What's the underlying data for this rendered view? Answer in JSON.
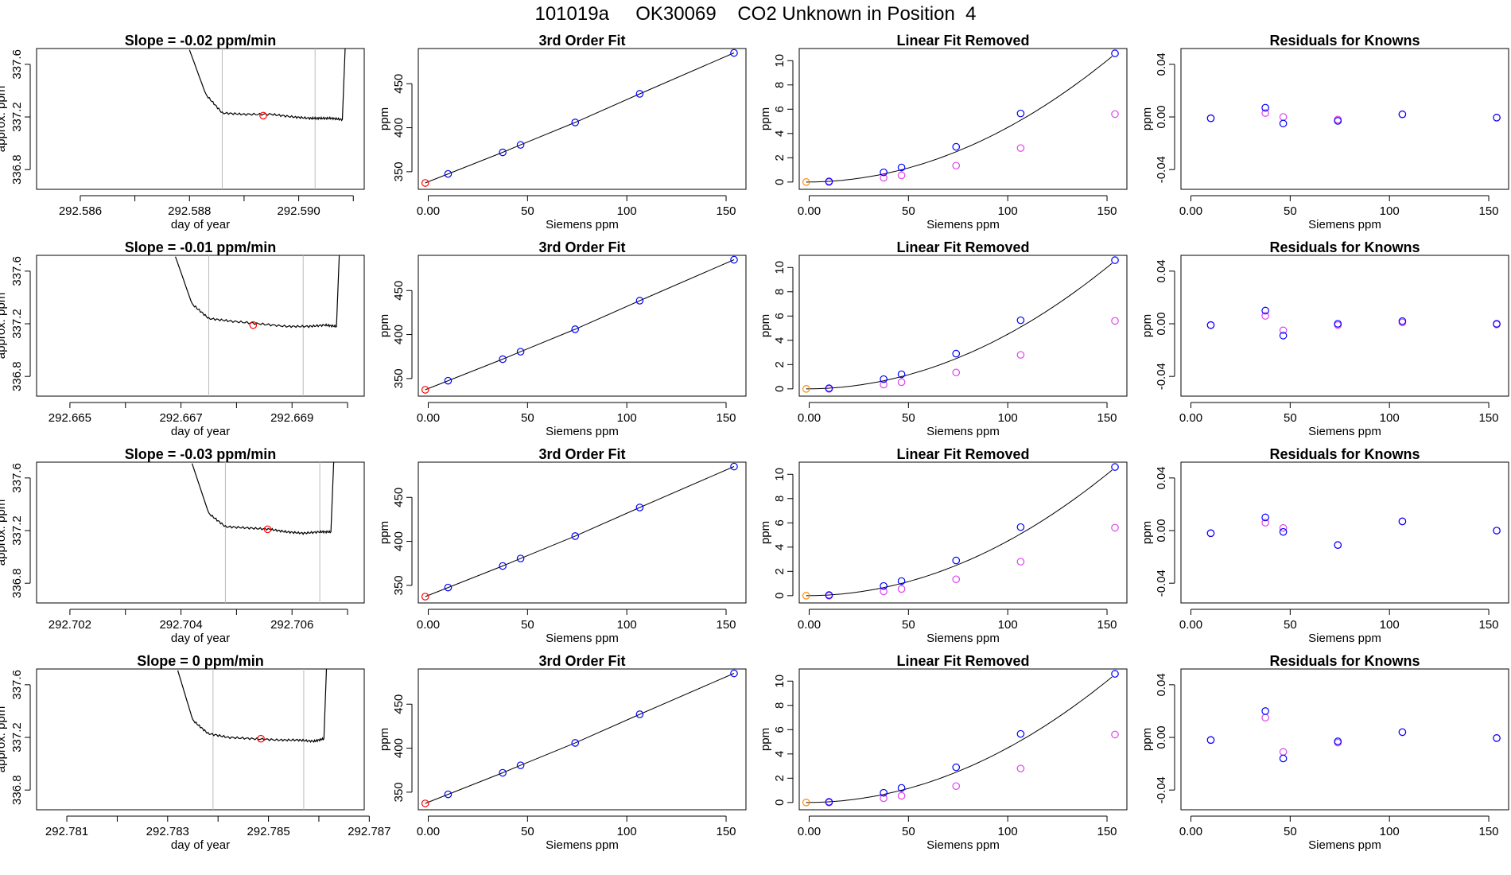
{
  "title": "101019a     OK30069    CO2 Unknown in Position  4",
  "chart_data": [
    {
      "type": "line",
      "panel": "timeseries",
      "row": 0,
      "title": "Slope =  -0.02  ppm/min",
      "xlabel": "day of year",
      "ylabel": "approx. ppm",
      "xlim": [
        292.5852,
        292.5912
      ],
      "ylim": [
        336.65,
        337.72
      ],
      "xticks": [
        292.586,
        292.587,
        292.588,
        292.589,
        292.59,
        292.591
      ],
      "xticklabels": [
        "292.586",
        "",
        "292.588",
        "",
        "292.590",
        ""
      ],
      "yticks": [
        336.8,
        337.2,
        337.6
      ],
      "yticklabels": [
        "336.8",
        "337.2",
        "337.6"
      ],
      "vlines": [
        292.5886,
        292.5903
      ],
      "line": {
        "x": [
          292.588,
          292.5883,
          292.5886,
          292.589,
          292.5895,
          292.5899,
          292.5902,
          292.5904,
          292.5906,
          292.5908,
          292.59085
        ],
        "y": [
          337.71,
          337.37,
          337.23,
          337.22,
          337.22,
          337.2,
          337.19,
          337.19,
          337.19,
          337.18,
          337.72
        ]
      },
      "marker": {
        "x": 292.58935,
        "y": 337.21
      }
    },
    {
      "type": "scatter",
      "panel": "fit",
      "row": 0,
      "title": "3rd Order Fit",
      "xlabel": "Siemens ppm",
      "ylabel": "ppm",
      "xlim": [
        -5,
        160
      ],
      "ylim": [
        330,
        490
      ],
      "xticks": [
        0,
        50,
        100,
        150
      ],
      "yticks": [
        350,
        400,
        450
      ],
      "x": [
        -1.5,
        10,
        37.5,
        46.5,
        74,
        106.5,
        154
      ],
      "y": [
        337.2,
        347.5,
        372,
        380.5,
        406,
        438.5,
        485
      ],
      "point_colors": [
        "#ff0000",
        "#0000ff",
        "#0000ff",
        "#0000ff",
        "#0000ff",
        "#0000ff",
        "#0000ff"
      ]
    },
    {
      "type": "scatter",
      "panel": "linear-removed",
      "row": 0,
      "title": "Linear Fit Removed",
      "xlabel": "Siemens ppm",
      "ylabel": "ppm",
      "xlim": [
        -5,
        160
      ],
      "ylim": [
        -0.6,
        11
      ],
      "xticks": [
        0,
        50,
        100,
        150
      ],
      "yticks": [
        0,
        2,
        4,
        6,
        8,
        10
      ],
      "blue": {
        "x": [
          10,
          37.5,
          46.5,
          74,
          106.5,
          154
        ],
        "y": [
          0.05,
          0.8,
          1.2,
          2.9,
          5.65,
          10.6
        ]
      },
      "magenta": {
        "x": [
          10,
          37.5,
          46.5,
          74,
          106.5,
          154
        ],
        "y": [
          0,
          0.35,
          0.55,
          1.35,
          2.8,
          5.6
        ]
      },
      "orange": {
        "x": [
          -1.5
        ],
        "y": [
          0
        ]
      }
    },
    {
      "type": "scatter",
      "panel": "residuals",
      "row": 0,
      "title": "Residuals for Knowns",
      "xlabel": "Siemens ppm",
      "ylabel": "ppm",
      "xlim": [
        -5,
        160
      ],
      "ylim": [
        -0.055,
        0.052
      ],
      "xticks": [
        0,
        50,
        100,
        150
      ],
      "yticks": [
        -0.04,
        0,
        0.04
      ],
      "x": [
        10,
        37.5,
        46.5,
        74,
        106.5,
        154
      ],
      "blue": [
        -0.001,
        0.007,
        -0.005,
        -0.003,
        0.002,
        -0.0005
      ],
      "magenta": [
        -0.001,
        0.003,
        0.0,
        -0.002,
        0.002,
        -0.0005
      ]
    },
    {
      "type": "line",
      "panel": "timeseries",
      "row": 1,
      "title": "Slope =  -0.01  ppm/min",
      "xlabel": "day of year",
      "ylabel": "approx. ppm",
      "xlim": [
        292.6644,
        292.6703
      ],
      "ylim": [
        336.65,
        337.72
      ],
      "xticks": [
        292.665,
        292.666,
        292.667,
        292.668,
        292.669,
        292.67
      ],
      "xticklabels": [
        "292.665",
        "",
        "292.667",
        "",
        "292.669",
        ""
      ],
      "yticks": [
        336.8,
        337.2,
        337.6
      ],
      "yticklabels": [
        "336.8",
        "337.2",
        "337.6"
      ],
      "vlines": [
        292.6675,
        292.6692
      ],
      "line": {
        "x": [
          292.6669,
          292.6672,
          292.6675,
          292.6679,
          292.6684,
          292.6689,
          292.6693,
          292.6696,
          292.6698,
          292.66985
        ],
        "y": [
          337.71,
          337.35,
          337.24,
          337.22,
          337.2,
          337.18,
          337.18,
          337.19,
          337.18,
          337.72
        ]
      },
      "marker": {
        "x": 292.6683,
        "y": 337.19
      }
    },
    {
      "type": "scatter",
      "panel": "fit",
      "row": 1,
      "title": "3rd Order Fit",
      "xlabel": "Siemens ppm",
      "ylabel": "ppm",
      "xlim": [
        -5,
        160
      ],
      "ylim": [
        330,
        490
      ],
      "xticks": [
        0,
        50,
        100,
        150
      ],
      "yticks": [
        350,
        400,
        450
      ],
      "x": [
        -1.5,
        10,
        37.5,
        46.5,
        74,
        106.5,
        154
      ],
      "y": [
        337.2,
        347.5,
        372,
        380.5,
        406,
        438.5,
        485
      ],
      "point_colors": [
        "#ff0000",
        "#0000ff",
        "#0000ff",
        "#0000ff",
        "#0000ff",
        "#0000ff",
        "#0000ff"
      ]
    },
    {
      "type": "scatter",
      "panel": "linear-removed",
      "row": 1,
      "title": "Linear Fit Removed",
      "xlabel": "Siemens ppm",
      "ylabel": "ppm",
      "xlim": [
        -5,
        160
      ],
      "ylim": [
        -0.6,
        11
      ],
      "xticks": [
        0,
        50,
        100,
        150
      ],
      "yticks": [
        0,
        2,
        4,
        6,
        8,
        10
      ],
      "blue": {
        "x": [
          10,
          37.5,
          46.5,
          74,
          106.5,
          154
        ],
        "y": [
          0.05,
          0.8,
          1.2,
          2.9,
          5.65,
          10.6
        ]
      },
      "magenta": {
        "x": [
          10,
          37.5,
          46.5,
          74,
          106.5,
          154
        ],
        "y": [
          0,
          0.35,
          0.55,
          1.35,
          2.8,
          5.6
        ]
      },
      "orange": {
        "x": [
          -1.5
        ],
        "y": [
          0
        ]
      }
    },
    {
      "type": "scatter",
      "panel": "residuals",
      "row": 1,
      "title": "Residuals for Knowns",
      "xlabel": "Siemens ppm",
      "ylabel": "ppm",
      "xlim": [
        -5,
        160
      ],
      "ylim": [
        -0.055,
        0.052
      ],
      "xticks": [
        0,
        50,
        100,
        150
      ],
      "yticks": [
        -0.04,
        0,
        0.04
      ],
      "x": [
        10,
        37.5,
        46.5,
        74,
        106.5,
        154
      ],
      "blue": [
        -0.001,
        0.01,
        -0.009,
        0.0,
        0.002,
        0.0
      ],
      "magenta": [
        -0.001,
        0.006,
        -0.005,
        -0.001,
        0.001,
        -0.0005
      ]
    },
    {
      "type": "line",
      "panel": "timeseries",
      "row": 2,
      "title": "Slope =  -0.03  ppm/min",
      "xlabel": "day of year",
      "ylabel": "approx. ppm",
      "xlim": [
        292.7014,
        292.7073
      ],
      "ylim": [
        336.65,
        337.72
      ],
      "xticks": [
        292.702,
        292.703,
        292.704,
        292.705,
        292.706,
        292.707
      ],
      "xticklabels": [
        "292.702",
        "",
        "292.704",
        "",
        "292.706",
        ""
      ],
      "yticks": [
        336.8,
        337.2,
        337.6
      ],
      "yticklabels": [
        "336.8",
        "337.2",
        "337.6"
      ],
      "vlines": [
        292.7048,
        292.7065
      ],
      "line": {
        "x": [
          292.7042,
          292.7045,
          292.7048,
          292.7052,
          292.7056,
          292.7059,
          292.7062,
          292.7065,
          292.7067,
          292.70675
        ],
        "y": [
          337.71,
          337.33,
          337.23,
          337.22,
          337.21,
          337.19,
          337.18,
          337.19,
          337.19,
          337.72
        ]
      },
      "marker": {
        "x": 292.70556,
        "y": 337.21
      }
    },
    {
      "type": "scatter",
      "panel": "fit",
      "row": 2,
      "title": "3rd Order Fit",
      "xlabel": "Siemens ppm",
      "ylabel": "ppm",
      "xlim": [
        -5,
        160
      ],
      "ylim": [
        330,
        490
      ],
      "xticks": [
        0,
        50,
        100,
        150
      ],
      "yticks": [
        350,
        400,
        450
      ],
      "x": [
        -1.5,
        10,
        37.5,
        46.5,
        74,
        106.5,
        154
      ],
      "y": [
        337.2,
        347.5,
        372,
        380.5,
        406,
        438.5,
        485
      ],
      "point_colors": [
        "#ff0000",
        "#0000ff",
        "#0000ff",
        "#0000ff",
        "#0000ff",
        "#0000ff",
        "#0000ff"
      ]
    },
    {
      "type": "scatter",
      "panel": "linear-removed",
      "row": 2,
      "title": "Linear Fit Removed",
      "xlabel": "Siemens ppm",
      "ylabel": "ppm",
      "xlim": [
        -5,
        160
      ],
      "ylim": [
        -0.6,
        11
      ],
      "xticks": [
        0,
        50,
        100,
        150
      ],
      "yticks": [
        0,
        2,
        4,
        6,
        8,
        10
      ],
      "blue": {
        "x": [
          10,
          37.5,
          46.5,
          74,
          106.5,
          154
        ],
        "y": [
          0.05,
          0.8,
          1.2,
          2.9,
          5.65,
          10.6
        ]
      },
      "magenta": {
        "x": [
          10,
          37.5,
          46.5,
          74,
          106.5,
          154
        ],
        "y": [
          0,
          0.35,
          0.55,
          1.35,
          2.8,
          5.6
        ]
      },
      "orange": {
        "x": [
          -1.5
        ],
        "y": [
          0
        ]
      }
    },
    {
      "type": "scatter",
      "panel": "residuals",
      "row": 2,
      "title": "Residuals for Knowns",
      "xlabel": "Siemens ppm",
      "ylabel": "ppm",
      "xlim": [
        -5,
        160
      ],
      "ylim": [
        -0.055,
        0.052
      ],
      "xticks": [
        0,
        50,
        100,
        150
      ],
      "yticks": [
        -0.04,
        0,
        0.04
      ],
      "x": [
        10,
        37.5,
        46.5,
        74,
        106.5,
        154
      ],
      "blue": [
        -0.002,
        0.01,
        -0.001,
        -0.011,
        0.007,
        0.0
      ],
      "magenta": [
        -0.002,
        0.006,
        0.002,
        -0.011,
        0.007,
        0.0
      ]
    },
    {
      "type": "line",
      "panel": "timeseries",
      "row": 3,
      "title": "Slope =  0  ppm/min",
      "xlabel": "day of year",
      "ylabel": "approx. ppm",
      "xlim": [
        292.7804,
        292.7869
      ],
      "ylim": [
        336.65,
        337.72
      ],
      "xticks": [
        292.781,
        292.782,
        292.783,
        292.784,
        292.785,
        292.786,
        292.787
      ],
      "xticklabels": [
        "292.781",
        "",
        "292.783",
        "",
        "292.785",
        "",
        "292.787"
      ],
      "yticks": [
        336.8,
        337.2,
        337.6
      ],
      "yticklabels": [
        "336.8",
        "337.2",
        "337.6"
      ],
      "vlines": [
        292.7839,
        292.7857
      ],
      "line": {
        "x": [
          292.7832,
          292.7835,
          292.7838,
          292.7842,
          292.7847,
          292.7852,
          292.7856,
          292.7859,
          292.7861,
          292.78615
        ],
        "y": [
          337.71,
          337.33,
          337.23,
          337.2,
          337.19,
          337.18,
          337.18,
          337.17,
          337.19,
          337.72
        ]
      },
      "marker": {
        "x": 292.78485,
        "y": 337.19
      }
    },
    {
      "type": "scatter",
      "panel": "fit",
      "row": 3,
      "title": "3rd Order Fit",
      "xlabel": "Siemens ppm",
      "ylabel": "ppm",
      "xlim": [
        -5,
        160
      ],
      "ylim": [
        330,
        490
      ],
      "xticks": [
        0,
        50,
        100,
        150
      ],
      "yticks": [
        350,
        400,
        450
      ],
      "x": [
        -1.5,
        10,
        37.5,
        46.5,
        74,
        106.5,
        154
      ],
      "y": [
        337.2,
        347.5,
        372,
        380.5,
        406,
        438.5,
        485
      ],
      "point_colors": [
        "#ff0000",
        "#0000ff",
        "#0000ff",
        "#0000ff",
        "#0000ff",
        "#0000ff",
        "#0000ff"
      ]
    },
    {
      "type": "scatter",
      "panel": "linear-removed",
      "row": 3,
      "title": "Linear Fit Removed",
      "xlabel": "Siemens ppm",
      "ylabel": "ppm",
      "xlim": [
        -5,
        160
      ],
      "ylim": [
        -0.6,
        11
      ],
      "xticks": [
        0,
        50,
        100,
        150
      ],
      "yticks": [
        0,
        2,
        4,
        6,
        8,
        10
      ],
      "blue": {
        "x": [
          10,
          37.5,
          46.5,
          74,
          106.5,
          154
        ],
        "y": [
          0.05,
          0.8,
          1.2,
          2.9,
          5.65,
          10.6
        ]
      },
      "magenta": {
        "x": [
          10,
          37.5,
          46.5,
          74,
          106.5,
          154
        ],
        "y": [
          0,
          0.35,
          0.55,
          1.35,
          2.8,
          5.6
        ]
      },
      "orange": {
        "x": [
          -1.5
        ],
        "y": [
          0
        ]
      }
    },
    {
      "type": "scatter",
      "panel": "residuals",
      "row": 3,
      "title": "Residuals for Knowns",
      "xlabel": "Siemens ppm",
      "ylabel": "ppm",
      "xlim": [
        -5,
        160
      ],
      "ylim": [
        -0.055,
        0.052
      ],
      "xticks": [
        0,
        50,
        100,
        150
      ],
      "yticks": [
        -0.04,
        0,
        0.04
      ],
      "x": [
        10,
        37.5,
        46.5,
        74,
        106.5,
        154
      ],
      "blue": [
        -0.002,
        0.02,
        -0.016,
        -0.003,
        0.004,
        -0.0005
      ],
      "magenta": [
        -0.002,
        0.015,
        -0.011,
        -0.004,
        0.004,
        -0.0005
      ]
    }
  ],
  "colors": {
    "blue": "#0000ff",
    "magenta": "#dd44ee",
    "red": "#ff0000",
    "orange": "#ff8800",
    "vline": "#bbbbbb",
    "line": "#000000"
  }
}
